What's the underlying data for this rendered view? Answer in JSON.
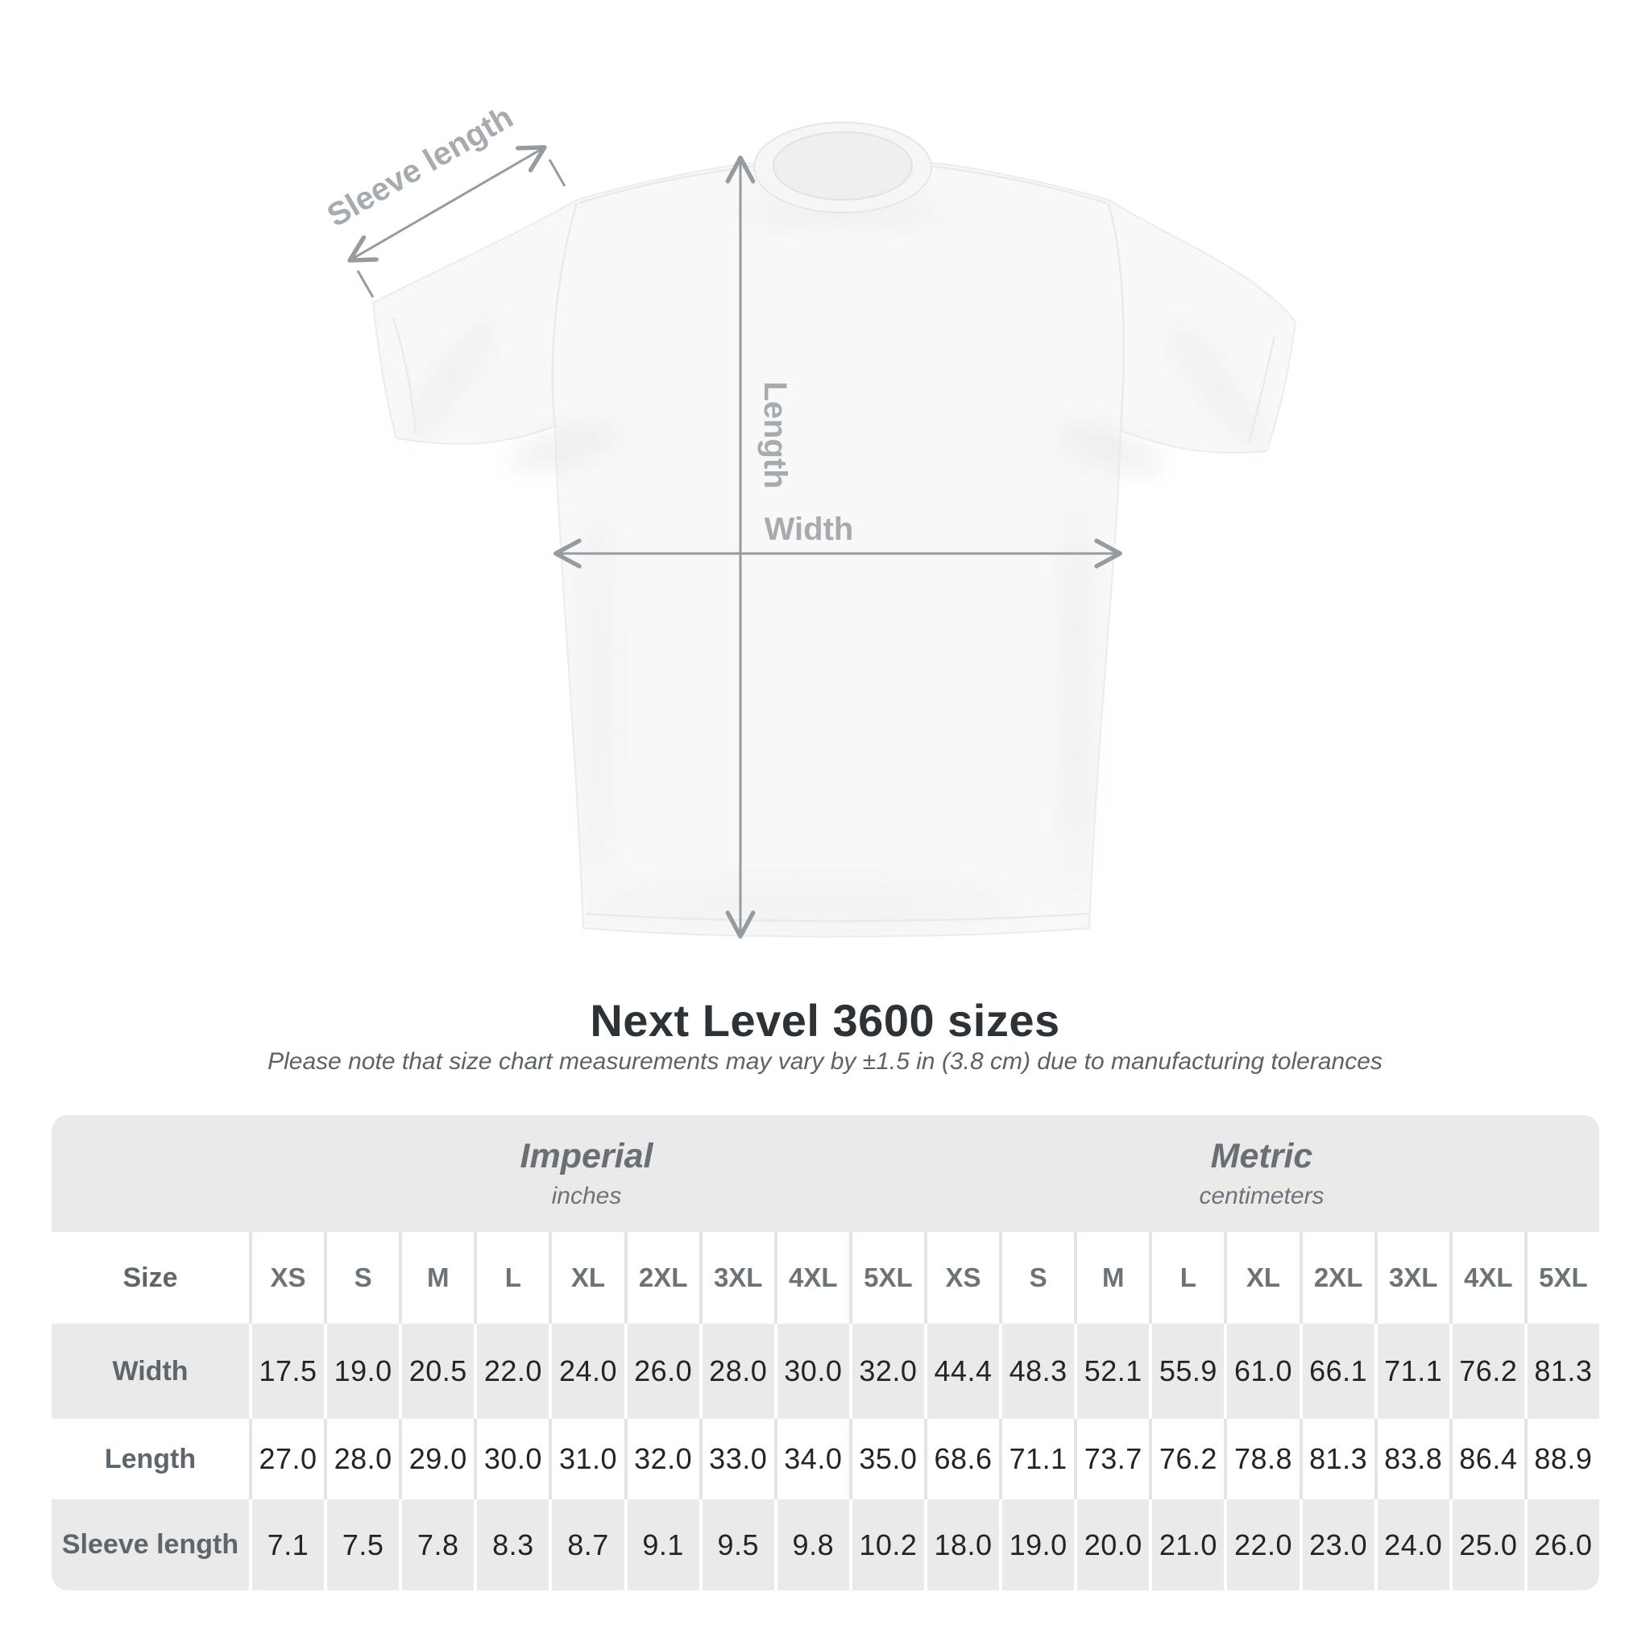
{
  "diagram": {
    "sleeve_label": "Sleeve length",
    "length_label": "Length",
    "width_label": "Width"
  },
  "title": "Next Level 3600 sizes",
  "note": "Please note that size chart measurements may vary by ±1.5 in (3.8 cm) due to manufacturing tolerances",
  "table": {
    "corner_label": "Size",
    "groups": [
      {
        "name": "Imperial",
        "unit": "inches"
      },
      {
        "name": "Metric",
        "unit": "centimeters"
      }
    ],
    "sizes": [
      "XS",
      "S",
      "M",
      "L",
      "XL",
      "2XL",
      "3XL",
      "4XL",
      "5XL"
    ],
    "rows": [
      {
        "label": "Width",
        "imperial": [
          "17.5",
          "19.0",
          "20.5",
          "22.0",
          "24.0",
          "26.0",
          "28.0",
          "30.0",
          "32.0"
        ],
        "metric": [
          "44.4",
          "48.3",
          "52.1",
          "55.9",
          "61.0",
          "66.1",
          "71.1",
          "76.2",
          "81.3"
        ]
      },
      {
        "label": "Length",
        "imperial": [
          "27.0",
          "28.0",
          "29.0",
          "30.0",
          "31.0",
          "32.0",
          "33.0",
          "34.0",
          "35.0"
        ],
        "metric": [
          "68.6",
          "71.1",
          "73.7",
          "76.2",
          "78.8",
          "81.3",
          "83.8",
          "86.4",
          "88.9"
        ]
      },
      {
        "label": "Sleeve length",
        "imperial": [
          "7.1",
          "7.5",
          "7.8",
          "8.3",
          "8.7",
          "9.1",
          "9.5",
          "9.8",
          "10.2"
        ],
        "metric": [
          "18.0",
          "19.0",
          "20.0",
          "21.0",
          "22.0",
          "23.0",
          "24.0",
          "25.0",
          "26.0"
        ]
      }
    ]
  },
  "colors": {
    "row_gray": "#eaeaeb",
    "separator": "#e4e4e6",
    "number_text": "#212528",
    "label_text": "#5f666b",
    "diagram_line": "#959b9f",
    "diagram_label": "#a6abaf",
    "title_text": "#2d3236"
  }
}
